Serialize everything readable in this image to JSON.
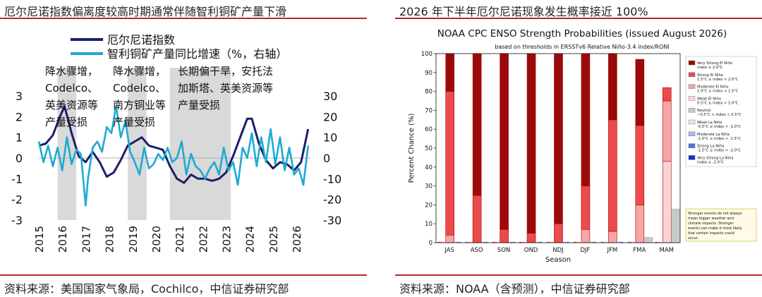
{
  "left": {
    "title": "厄尔尼诺指数偏离度较高时期通常伴随智利铜矿产量下滑",
    "source": "资料来源：美国国家气象局，Cochilco，中信证券研究部",
    "chart_data": {
      "type": "line",
      "legend": [
        {
          "name": "厄尔尼诺指数",
          "color": "#1b1f6b"
        },
        {
          "name": "智利铜矿产量同比增速（%，右轴）",
          "color": "#1eaad4"
        }
      ],
      "yleft": {
        "ticks": [
          "3",
          "2",
          "1",
          "0",
          "-1",
          "-2",
          "-3"
        ],
        "min": -3,
        "max": 3
      },
      "yright": {
        "ticks": [
          "30",
          "20",
          "10",
          "0",
          "-10",
          "-20",
          "-30"
        ],
        "min": -30,
        "max": 30
      },
      "xticks": [
        "2015",
        "2016",
        "2017",
        "2018",
        "2019",
        "2020",
        "2021",
        "2022",
        "2023",
        "2024",
        "2025",
        "2026"
      ],
      "shaded_periods": [
        [
          2015.8,
          2016.6
        ],
        [
          2018.8,
          2019.6
        ],
        [
          2020.6,
          2023.2
        ]
      ],
      "annotations": [
        {
          "lines": [
            "降水骤增，",
            "Codelco、",
            "英美资源等",
            "产量受损"
          ]
        },
        {
          "lines": [
            "降水骤增，",
            "Codelco、",
            "南方铜业等",
            "产量受损"
          ]
        },
        {
          "lines": [
            "长期偏干旱，安托法",
            "加斯塔、英美资源等",
            "产量受损"
          ]
        }
      ],
      "series": [
        {
          "name": "厄尔尼诺指数",
          "axis": "left",
          "x": [
            2015.0,
            2015.3,
            2015.6,
            2015.9,
            2016.1,
            2016.4,
            2016.7,
            2017.0,
            2017.3,
            2017.6,
            2017.9,
            2018.2,
            2018.5,
            2018.8,
            2019.1,
            2019.4,
            2019.7,
            2020.0,
            2020.3,
            2020.6,
            2020.9,
            2021.2,
            2021.5,
            2021.8,
            2022.1,
            2022.4,
            2022.7,
            2023.0,
            2023.3,
            2023.6,
            2023.9,
            2024.1,
            2024.4,
            2024.7,
            2025.0,
            2025.3,
            2025.6,
            2025.9,
            2026.2,
            2026.5
          ],
          "y": [
            0.6,
            0.7,
            1.1,
            2.0,
            2.5,
            1.2,
            0.1,
            -0.2,
            0.3,
            -0.2,
            -0.9,
            -0.7,
            -0.1,
            0.6,
            0.8,
            1.0,
            0.6,
            0.5,
            0.4,
            -0.4,
            -1.0,
            -1.2,
            -0.8,
            -1.0,
            -1.0,
            -1.1,
            -1.0,
            -0.7,
            0.1,
            1.0,
            1.9,
            1.9,
            0.7,
            -0.1,
            -0.5,
            -0.2,
            -0.3,
            -0.6,
            -0.2,
            1.4
          ]
        },
        {
          "name": "智利铜矿产量同比增速（%，右轴）",
          "axis": "right",
          "x": [
            2015.0,
            2015.2,
            2015.4,
            2015.6,
            2015.8,
            2016.0,
            2016.2,
            2016.4,
            2016.6,
            2016.8,
            2017.0,
            2017.1,
            2017.3,
            2017.5,
            2017.7,
            2017.9,
            2018.1,
            2018.3,
            2018.5,
            2018.7,
            2018.9,
            2019.1,
            2019.3,
            2019.5,
            2019.7,
            2019.9,
            2020.1,
            2020.3,
            2020.5,
            2020.7,
            2020.9,
            2021.1,
            2021.3,
            2021.5,
            2021.7,
            2021.9,
            2022.1,
            2022.3,
            2022.5,
            2022.7,
            2022.9,
            2023.1,
            2023.3,
            2023.5,
            2023.7,
            2023.9,
            2024.1,
            2024.3,
            2024.5,
            2024.7,
            2024.9,
            2025.1,
            2025.3,
            2025.5,
            2025.7,
            2025.9,
            2026.1,
            2026.3,
            2026.5
          ],
          "y": [
            8,
            -2,
            6,
            -4,
            5,
            -6,
            10,
            -3,
            4,
            2,
            -23,
            -10,
            5,
            8,
            3,
            15,
            12,
            25,
            10,
            18,
            3,
            -2,
            -8,
            5,
            -5,
            -3,
            2,
            -1,
            5,
            -2,
            0,
            8,
            -8,
            2,
            -4,
            -6,
            -10,
            -5,
            -2,
            -8,
            5,
            -6,
            -2,
            -13,
            5,
            0,
            12,
            -4,
            10,
            -2,
            14,
            -3,
            10,
            -6,
            5,
            -8,
            -5,
            -13,
            6
          ]
        }
      ]
    }
  },
  "right": {
    "title": "2026 年下半年厄尔尼诺现象发生概率接近 100%",
    "source": "资料来源：NOAA（含预测），中信证券研究部",
    "chart_data": {
      "type": "bar",
      "title": "NOAA CPC ENSO Strength Probabilities (issued August 2026)",
      "subtitle": "based on thresholds in ERSSTv6 Relative Niño-3.4 index/RONI",
      "ylabel": "Percent Chance (%)",
      "xlabel": "Season",
      "ylim": [
        0,
        100
      ],
      "yticks": [
        "0",
        "10",
        "20",
        "30",
        "40",
        "50",
        "60",
        "70",
        "80",
        "90",
        "100"
      ],
      "categories": [
        "JAS",
        "ASO",
        "SON",
        "OND",
        "NDJ",
        "DJF",
        "JFM",
        "FMA",
        "MAM"
      ],
      "groups": [
        {
          "name": "El Niño",
          "offset": 1,
          "stacks": [
            {
              "name": "Weak El Niño",
              "color": "#fad4d4",
              "values": [
                0,
                0,
                0,
                0,
                0,
                0,
                0,
                0,
                43
              ]
            },
            {
              "name": "Moderate El Niño",
              "color": "#f5a6a6",
              "values": [
                4,
                0,
                0,
                0,
                0,
                7,
                6,
                20,
                32
              ]
            },
            {
              "name": "Strong El Niño",
              "color": "#ea4b4b",
              "values": [
                76,
                25,
                7,
                5,
                10,
                23,
                59,
                42,
                7
              ]
            },
            {
              "name": "Very Strong El Niño",
              "color": "#9a0a0a",
              "values": [
                20,
                75,
                93,
                95,
                90,
                70,
                35,
                35,
                0
              ]
            }
          ]
        },
        {
          "name": "Neutral",
          "offset": 0,
          "stacks": [
            {
              "name": "Neutral",
              "color": "#c8c8c8",
              "values": [
                0,
                0,
                0,
                0,
                0,
                0,
                0,
                3,
                18
              ]
            }
          ]
        }
      ],
      "legend": [
        {
          "name": "Very Strong El Niño",
          "range": "index ≥ 2.0°C",
          "color": "#9a0a0a"
        },
        {
          "name": "Strong El Niño",
          "range": "1.5°C ≤ index < 2.0°C",
          "color": "#ea4b4b"
        },
        {
          "name": "Moderate El Niño",
          "range": "1.0°C ≤ index < 1.5°C",
          "color": "#f5a6a6"
        },
        {
          "name": "Weak El Niño",
          "range": "0.5°C ≤ index < 1.0°C",
          "color": "#fad4d4"
        },
        {
          "name": "Neutral",
          "range": "−0.5°C < index < 0.5°C",
          "color": "#c8c8c8"
        },
        {
          "name": "Weak La Niña",
          "range": "-0.5°C ≥ index > -1.0°C",
          "color": "#dfe5fb"
        },
        {
          "name": "Moderate La Niña",
          "range": "-1.0°C ≥ index > -1.5°C",
          "color": "#aab9f3"
        },
        {
          "name": "Strong La Niña",
          "range": "-1.5°C ≥ index > -2.0°C",
          "color": "#4f71e6"
        },
        {
          "name": "Very Strong La Niña",
          "range": "index ≤ -2.0°C",
          "color": "#1a2fc8"
        }
      ],
      "note": "Stronger events do not always mean bigger weather and climate impacts. Stronger events can make it more likely that certain impacts could occur."
    }
  }
}
